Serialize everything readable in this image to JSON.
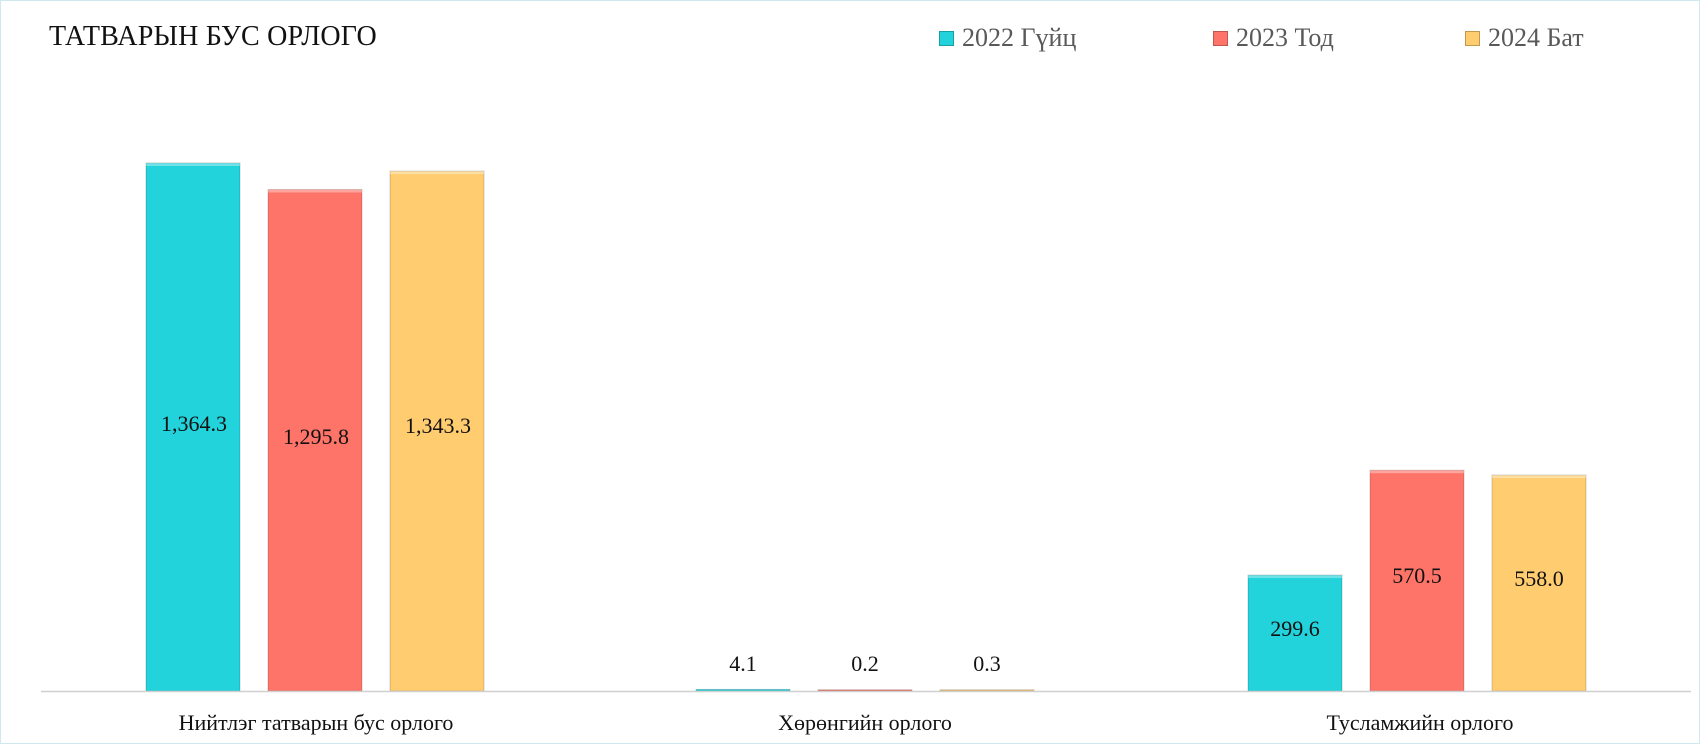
{
  "colors": {
    "s2022": "#22d3dc",
    "s2023": "#ff7469",
    "s2024": "#ffcc6f"
  },
  "chart_data": {
    "type": "bar",
    "title": "ТАТВАРЫН БУС ОРЛОГО",
    "categories": [
      "Нийтлэг татварын бус орлого",
      "Хөрөнгийн орлого",
      "Тусламжийн орлого"
    ],
    "series": [
      {
        "name": "2022 Гүйц",
        "values": [
          1364.3,
          4.1,
          299.6
        ],
        "labels": [
          "1,364.3",
          "4.1",
          "299.6"
        ]
      },
      {
        "name": "2023 Тод",
        "values": [
          1295.8,
          0.2,
          570.5
        ],
        "labels": [
          "1,295.8",
          "0.2",
          "570.5"
        ]
      },
      {
        "name": "2024 Бат",
        "values": [
          1343.3,
          0.3,
          558.0
        ],
        "labels": [
          "1,343.3",
          "0.3",
          "558.0"
        ]
      }
    ],
    "legend_position": "top-right",
    "grid": false
  }
}
